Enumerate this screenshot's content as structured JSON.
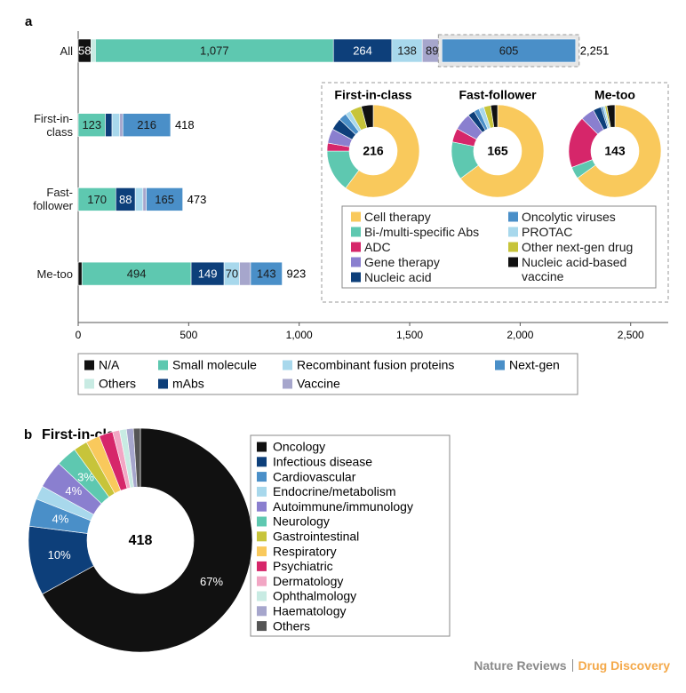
{
  "chart_data": [
    {
      "type": "stacked_hbar",
      "panel": "a",
      "categories": [
        "All",
        "First-in-class",
        "Fast-follower",
        "Me-too"
      ],
      "series": [
        {
          "name": "N/A",
          "color": "#111111",
          "values": [
            58,
            0,
            0,
            17
          ],
          "value_labels": [
            "58",
            null,
            null,
            null
          ]
        },
        {
          "name": "Others",
          "color": "#c8ebe3",
          "values": [
            20,
            0,
            0,
            0
          ],
          "value_labels": [
            null,
            null,
            null,
            null
          ]
        },
        {
          "name": "Small molecule",
          "color": "#5ec8b0",
          "values": [
            1077,
            123,
            170,
            494
          ],
          "value_labels": [
            "1,077",
            "123",
            "170",
            "494"
          ]
        },
        {
          "name": "mAbs",
          "color": "#0d3f7a",
          "values": [
            264,
            30,
            88,
            149
          ],
          "value_labels": [
            "264",
            null,
            "88",
            "149"
          ]
        },
        {
          "name": "Recombinant fusion proteins",
          "color": "#a8d8ec",
          "values": [
            138,
            35,
            35,
            70
          ],
          "value_labels": [
            "138",
            null,
            null,
            "70"
          ]
        },
        {
          "name": "Vaccine",
          "color": "#a6a6cc",
          "values": [
            89,
            14,
            15,
            50
          ],
          "value_labels": [
            "89",
            null,
            null,
            null
          ]
        },
        {
          "name": "Next-gen",
          "color": "#4a8fc8",
          "values": [
            605,
            216,
            165,
            143
          ],
          "value_labels": [
            "605",
            "216",
            "165",
            "143"
          ]
        }
      ],
      "totals": [
        2251,
        418,
        473,
        923
      ],
      "total_labels": [
        "2,251",
        "418",
        "473",
        "923"
      ],
      "xlim": [
        0,
        2670
      ],
      "xticks": [
        0,
        500,
        {
          "value": 1000,
          "label": "1,000"
        },
        {
          "value": 1500,
          "label": "1,500"
        },
        {
          "value": 2000,
          "label": "2,000"
        },
        {
          "value": 2500,
          "label": "2,500"
        }
      ]
    },
    {
      "type": "donut",
      "categories": [
        "Cell therapy",
        "Bi-/multi-specific Abs",
        "ADC",
        "Gene therapy",
        "Nucleic acid",
        "Oncolytic viruses",
        "PROTAC",
        "Other next-gen drug",
        "Nucleic acid-based vaccine"
      ],
      "colors": [
        "#f9c95c",
        "#5ec8b0",
        "#d6266a",
        "#8a7fcf",
        "#0d3f7a",
        "#4a8fc8",
        "#a8d8ec",
        "#c7c43a",
        "#111111"
      ],
      "series": [
        {
          "name": "First-in-class",
          "center_label": 216,
          "values": [
            130,
            32,
            6,
            11,
            9,
            6,
            4,
            9,
            9
          ]
        },
        {
          "name": "Fast-follower",
          "center_label": 165,
          "values": [
            107,
            22,
            8,
            10,
            4,
            3,
            3,
            4,
            4
          ]
        },
        {
          "name": "Me-too",
          "center_label": 143,
          "values": [
            93,
            6,
            26,
            7,
            4,
            1,
            1,
            1,
            4
          ]
        }
      ]
    },
    {
      "type": "donut",
      "panel": "b",
      "title": "First-in-class",
      "center_label": 418,
      "categories": [
        "Oncology",
        "Infectious disease",
        "Cardiovascular",
        "Endocrine/metabolism",
        "Autoimmune/immunology",
        "Neurology",
        "Gastrointestinal",
        "Respiratory",
        "Psychiatric",
        "Dermatology",
        "Ophthalmology",
        "Haematology",
        "Others"
      ],
      "colors": [
        "#111111",
        "#0d3f7a",
        "#4a8fc8",
        "#a8d8ec",
        "#8a7fcf",
        "#5ec8b0",
        "#c7c43a",
        "#f9c95c",
        "#d6266a",
        "#f2a6c4",
        "#c8ebe3",
        "#a6a6cc",
        "#555555"
      ],
      "values": [
        67,
        10,
        4,
        2,
        4,
        3,
        2,
        2,
        2,
        1,
        1,
        1,
        1
      ],
      "value_labels": [
        "67%",
        "10%",
        "4%",
        null,
        "4%",
        "3%",
        null,
        null,
        null,
        null,
        null,
        null,
        null
      ]
    }
  ],
  "footer": {
    "publisher": "Nature Reviews",
    "journal": "Drug Discovery"
  }
}
